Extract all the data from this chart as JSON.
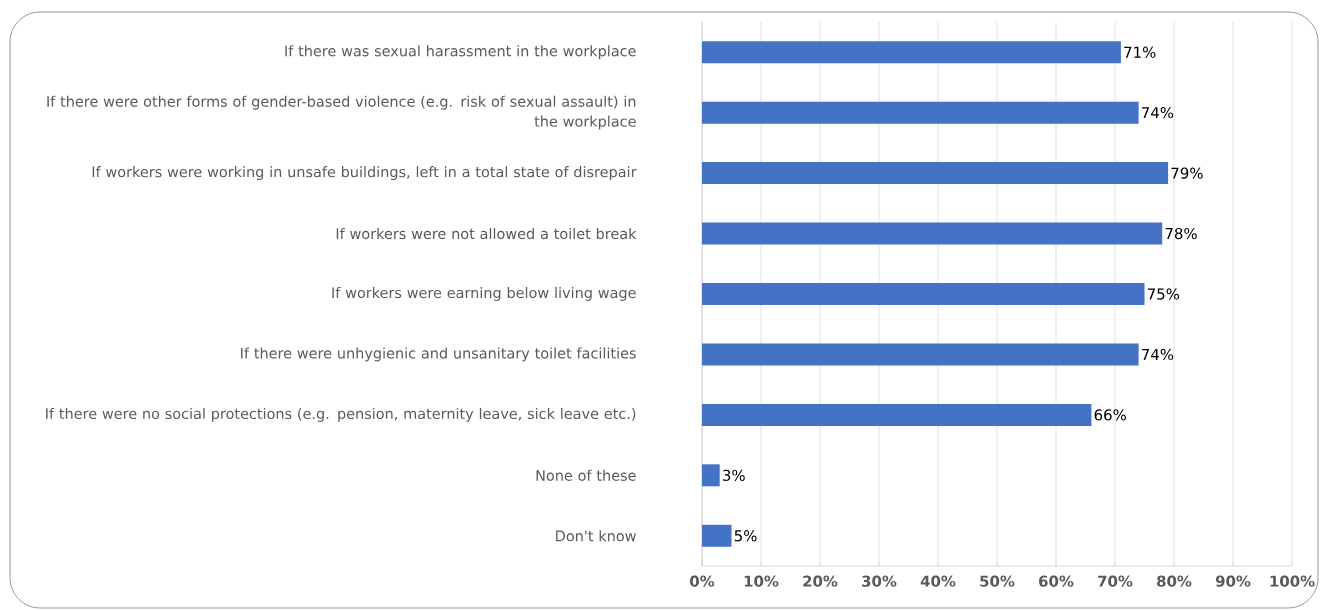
{
  "chart_data": {
    "type": "bar",
    "orientation": "horizontal",
    "categories": [
      "If there was sexual harassment in the workplace",
      "If there were other forms of gender-based violence (e.g. risk of sexual assault) in the workplace",
      "If workers were working in unsafe buildings, left in a total state of disrepair",
      "If workers were not allowed a toilet break",
      "If workers were earning below living wage",
      "If there were unhygienic and unsanitary toilet facilities",
      "If there were no social protections (e.g. pension, maternity leave, sick leave etc.)",
      "None of these",
      "Don't know"
    ],
    "values": [
      71,
      74,
      79,
      78,
      75,
      74,
      66,
      3,
      5
    ],
    "value_labels": [
      "71%",
      "74%",
      "79%",
      "78%",
      "75%",
      "74%",
      "66%",
      "3%",
      "5%"
    ],
    "color": "#4472c4",
    "xlim": [
      0,
      100
    ],
    "xticks": [
      {
        "value": 0,
        "label": "0%"
      },
      {
        "value": 10,
        "label": "10%"
      },
      {
        "value": 20,
        "label": "20%"
      },
      {
        "value": 30,
        "label": "30%"
      },
      {
        "value": 40,
        "label": "40%"
      },
      {
        "value": 50,
        "label": "50%"
      },
      {
        "value": 60,
        "label": "60%"
      },
      {
        "value": 70,
        "label": "70%"
      },
      {
        "value": 80,
        "label": "80%"
      },
      {
        "value": 90,
        "label": "90%"
      },
      {
        "value": 100,
        "label": "100%"
      }
    ],
    "grid": "x"
  }
}
